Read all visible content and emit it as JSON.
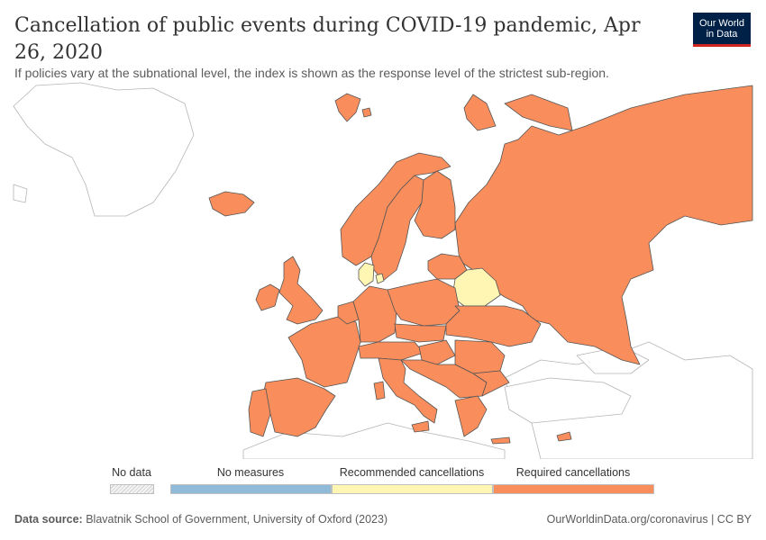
{
  "header": {
    "title": "Cancellation of public events during COVID-19 pandemic, Apr 26, 2020",
    "subtitle": "If policies vary at the subnational level, the index is shown as the response level of the strictest sub-region."
  },
  "logo": {
    "line1": "Our World",
    "line2": "in Data"
  },
  "colors": {
    "no_measures": "#8fbbd9",
    "recommended": "#fff6b4",
    "required": "#f98e5c",
    "outside": "#ffffff",
    "logo_bg": "#002147",
    "logo_accent": "#ce261e"
  },
  "legend": {
    "no_data": "No data",
    "items": [
      {
        "label": "No measures",
        "color": "#8fbbd9"
      },
      {
        "label": "Recommended cancellations",
        "color": "#fff6b4"
      },
      {
        "label": "Required cancellations",
        "color": "#f98e5c"
      }
    ]
  },
  "map_data": {
    "date": "Apr 26, 2020",
    "regions": [
      {
        "name": "Russia",
        "status": "Required cancellations"
      },
      {
        "name": "Belarus",
        "status": "Recommended cancellations"
      },
      {
        "name": "Denmark",
        "status": "Recommended cancellations"
      },
      {
        "name": "Norway",
        "status": "Required cancellations"
      },
      {
        "name": "Sweden",
        "status": "Required cancellations"
      },
      {
        "name": "Finland",
        "status": "Required cancellations"
      },
      {
        "name": "Iceland",
        "status": "Required cancellations"
      },
      {
        "name": "United Kingdom",
        "status": "Required cancellations"
      },
      {
        "name": "Ireland",
        "status": "Required cancellations"
      },
      {
        "name": "France",
        "status": "Required cancellations"
      },
      {
        "name": "Spain",
        "status": "Required cancellations"
      },
      {
        "name": "Portugal",
        "status": "Required cancellations"
      },
      {
        "name": "Italy",
        "status": "Required cancellations"
      },
      {
        "name": "Germany",
        "status": "Required cancellations"
      },
      {
        "name": "Poland",
        "status": "Required cancellations"
      },
      {
        "name": "Ukraine",
        "status": "Required cancellations"
      },
      {
        "name": "Romania",
        "status": "Required cancellations"
      },
      {
        "name": "Greece",
        "status": "Required cancellations"
      },
      {
        "name": "Baltic states",
        "status": "Required cancellations"
      },
      {
        "name": "Balkan states",
        "status": "Required cancellations"
      },
      {
        "name": "Central Europe",
        "status": "Required cancellations"
      },
      {
        "name": "Cyprus",
        "status": "Required cancellations"
      },
      {
        "name": "Svalbard",
        "status": "Required cancellations"
      },
      {
        "name": "Novaya Zemlya",
        "status": "Required cancellations"
      }
    ]
  },
  "footer": {
    "source_label": "Data source:",
    "source_text": "Blavatnik School of Government, University of Oxford (2023)",
    "right": "OurWorldinData.org/coronavirus | CC BY"
  }
}
